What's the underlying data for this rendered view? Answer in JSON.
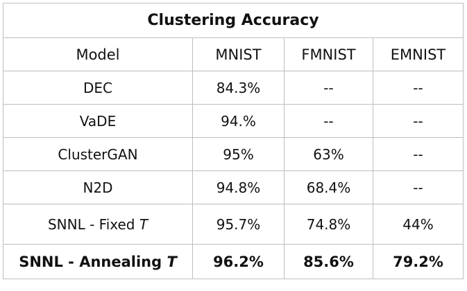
{
  "chart_data": {
    "type": "table",
    "title": "Clustering Accuracy",
    "columns": [
      "Model",
      "MNIST",
      "FMNIST",
      "EMNIST"
    ],
    "rows": [
      {
        "model": "DEC",
        "model_suffix": "",
        "values": [
          "84.3%",
          "--",
          "--"
        ]
      },
      {
        "model": "VaDE",
        "model_suffix": "",
        "values": [
          "94.%",
          "--",
          "--"
        ]
      },
      {
        "model": "ClusterGAN",
        "model_suffix": "",
        "values": [
          "95%",
          "63%",
          "--"
        ]
      },
      {
        "model": "N2D",
        "model_suffix": "",
        "values": [
          "94.8%",
          "68.4%",
          "--"
        ]
      },
      {
        "model": "SNNL - Fixed ",
        "model_suffix": "T",
        "values": [
          "95.7%",
          "74.8%",
          "44%"
        ]
      },
      {
        "model": "SNNL - Annealing ",
        "model_suffix": "T",
        "values": [
          "96.2%",
          "85.6%",
          "79.2%"
        ]
      }
    ]
  }
}
